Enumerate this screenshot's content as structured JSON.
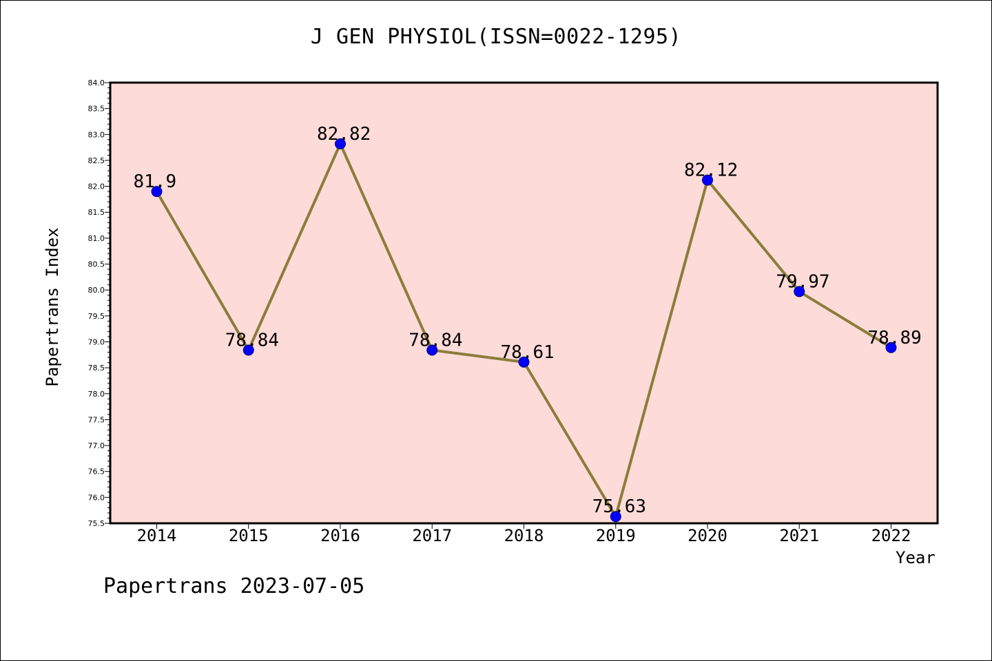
{
  "chart_data": {
    "type": "line",
    "title": "J GEN PHYSIOL(ISSN=0022-1295)",
    "xlabel": "Year",
    "ylabel": "Papertrans Index",
    "categories": [
      "2014",
      "2015",
      "2016",
      "2017",
      "2018",
      "2019",
      "2020",
      "2021",
      "2022"
    ],
    "series": [
      {
        "values": [
          81.9,
          78.84,
          82.82,
          78.84,
          78.61,
          75.63,
          82.12,
          79.97,
          78.89
        ],
        "point_labels": [
          "81.9",
          "78.84",
          "82.82",
          "78.84",
          "78.61",
          "75.63",
          "82.12",
          "79.97",
          "78.89"
        ]
      }
    ],
    "ylim": [
      75.5,
      84.0
    ],
    "yticks": [
      "75.5",
      "76.0",
      "76.5",
      "77.0",
      "77.5",
      "78.0",
      "78.5",
      "79.0",
      "79.5",
      "80.0",
      "80.5",
      "81.0",
      "81.5",
      "82.0",
      "82.5",
      "83.0",
      "83.5",
      "84.0"
    ],
    "grid": false,
    "legend": "none"
  },
  "footer": "Papertrans 2023-07-05",
  "colors": {
    "plot_background": "#fddbd8",
    "line": "#8b7d3a",
    "marker": "#0000ff"
  }
}
